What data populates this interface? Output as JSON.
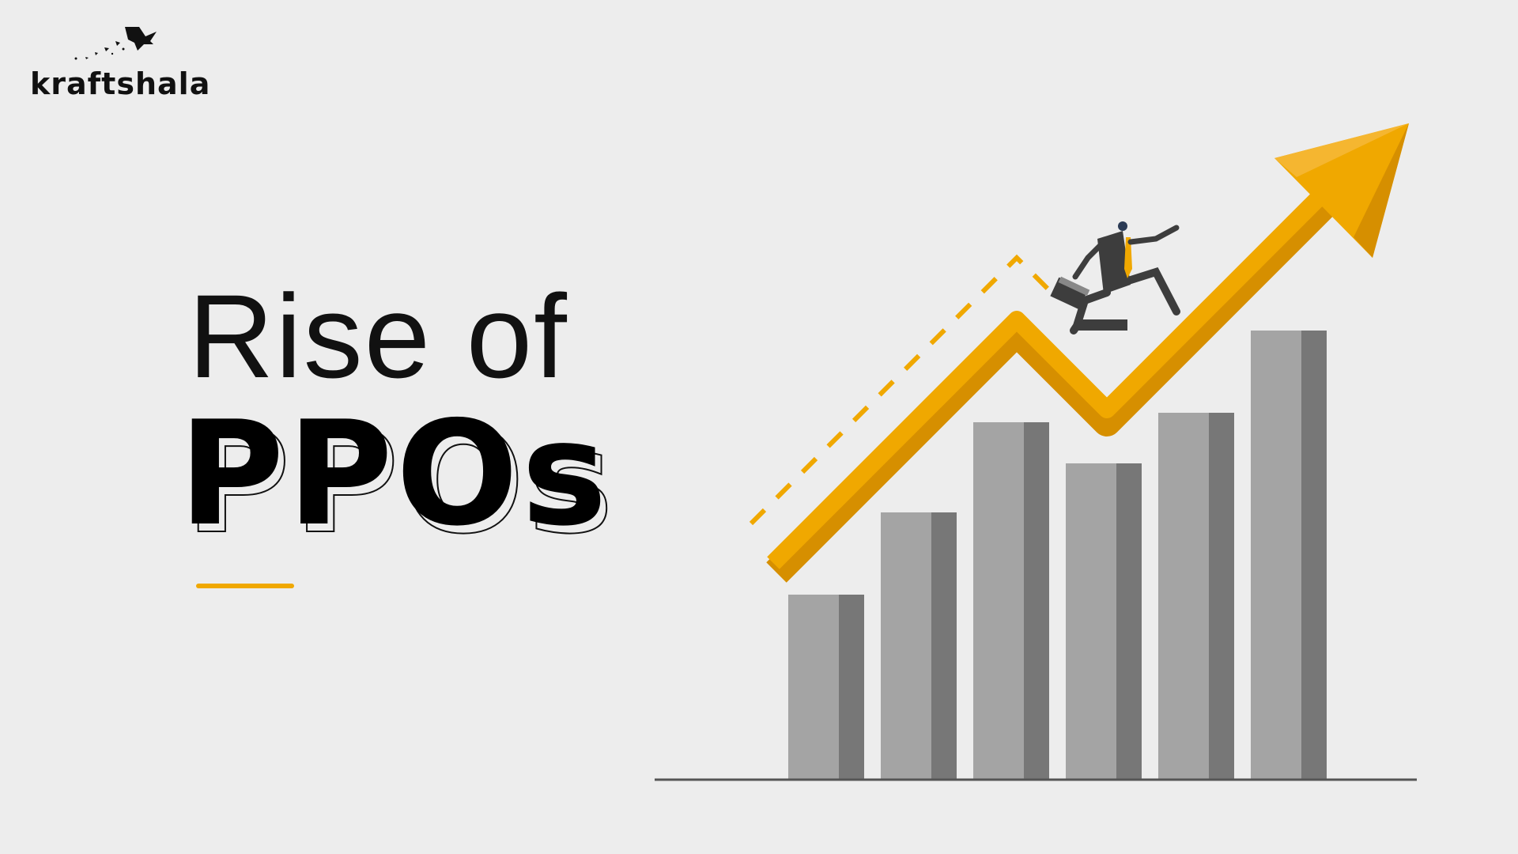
{
  "brand": {
    "name": "kraftshala",
    "logo_icon": "bird-icon"
  },
  "title": {
    "line1": "Rise of",
    "line2": "PPOs"
  },
  "colors": {
    "background": "#ededed",
    "accent": "#f0a800",
    "accent_dark": "#d68f00",
    "bar_light": "#a4a4a4",
    "bar_dark": "#777777",
    "text": "#111111"
  },
  "illustration": {
    "description_icons": [
      "growth-arrow-icon",
      "businessman-running-icon",
      "briefcase-icon"
    ],
    "bars": [
      0.34,
      0.49,
      0.66,
      0.58,
      0.68,
      0.83
    ]
  }
}
